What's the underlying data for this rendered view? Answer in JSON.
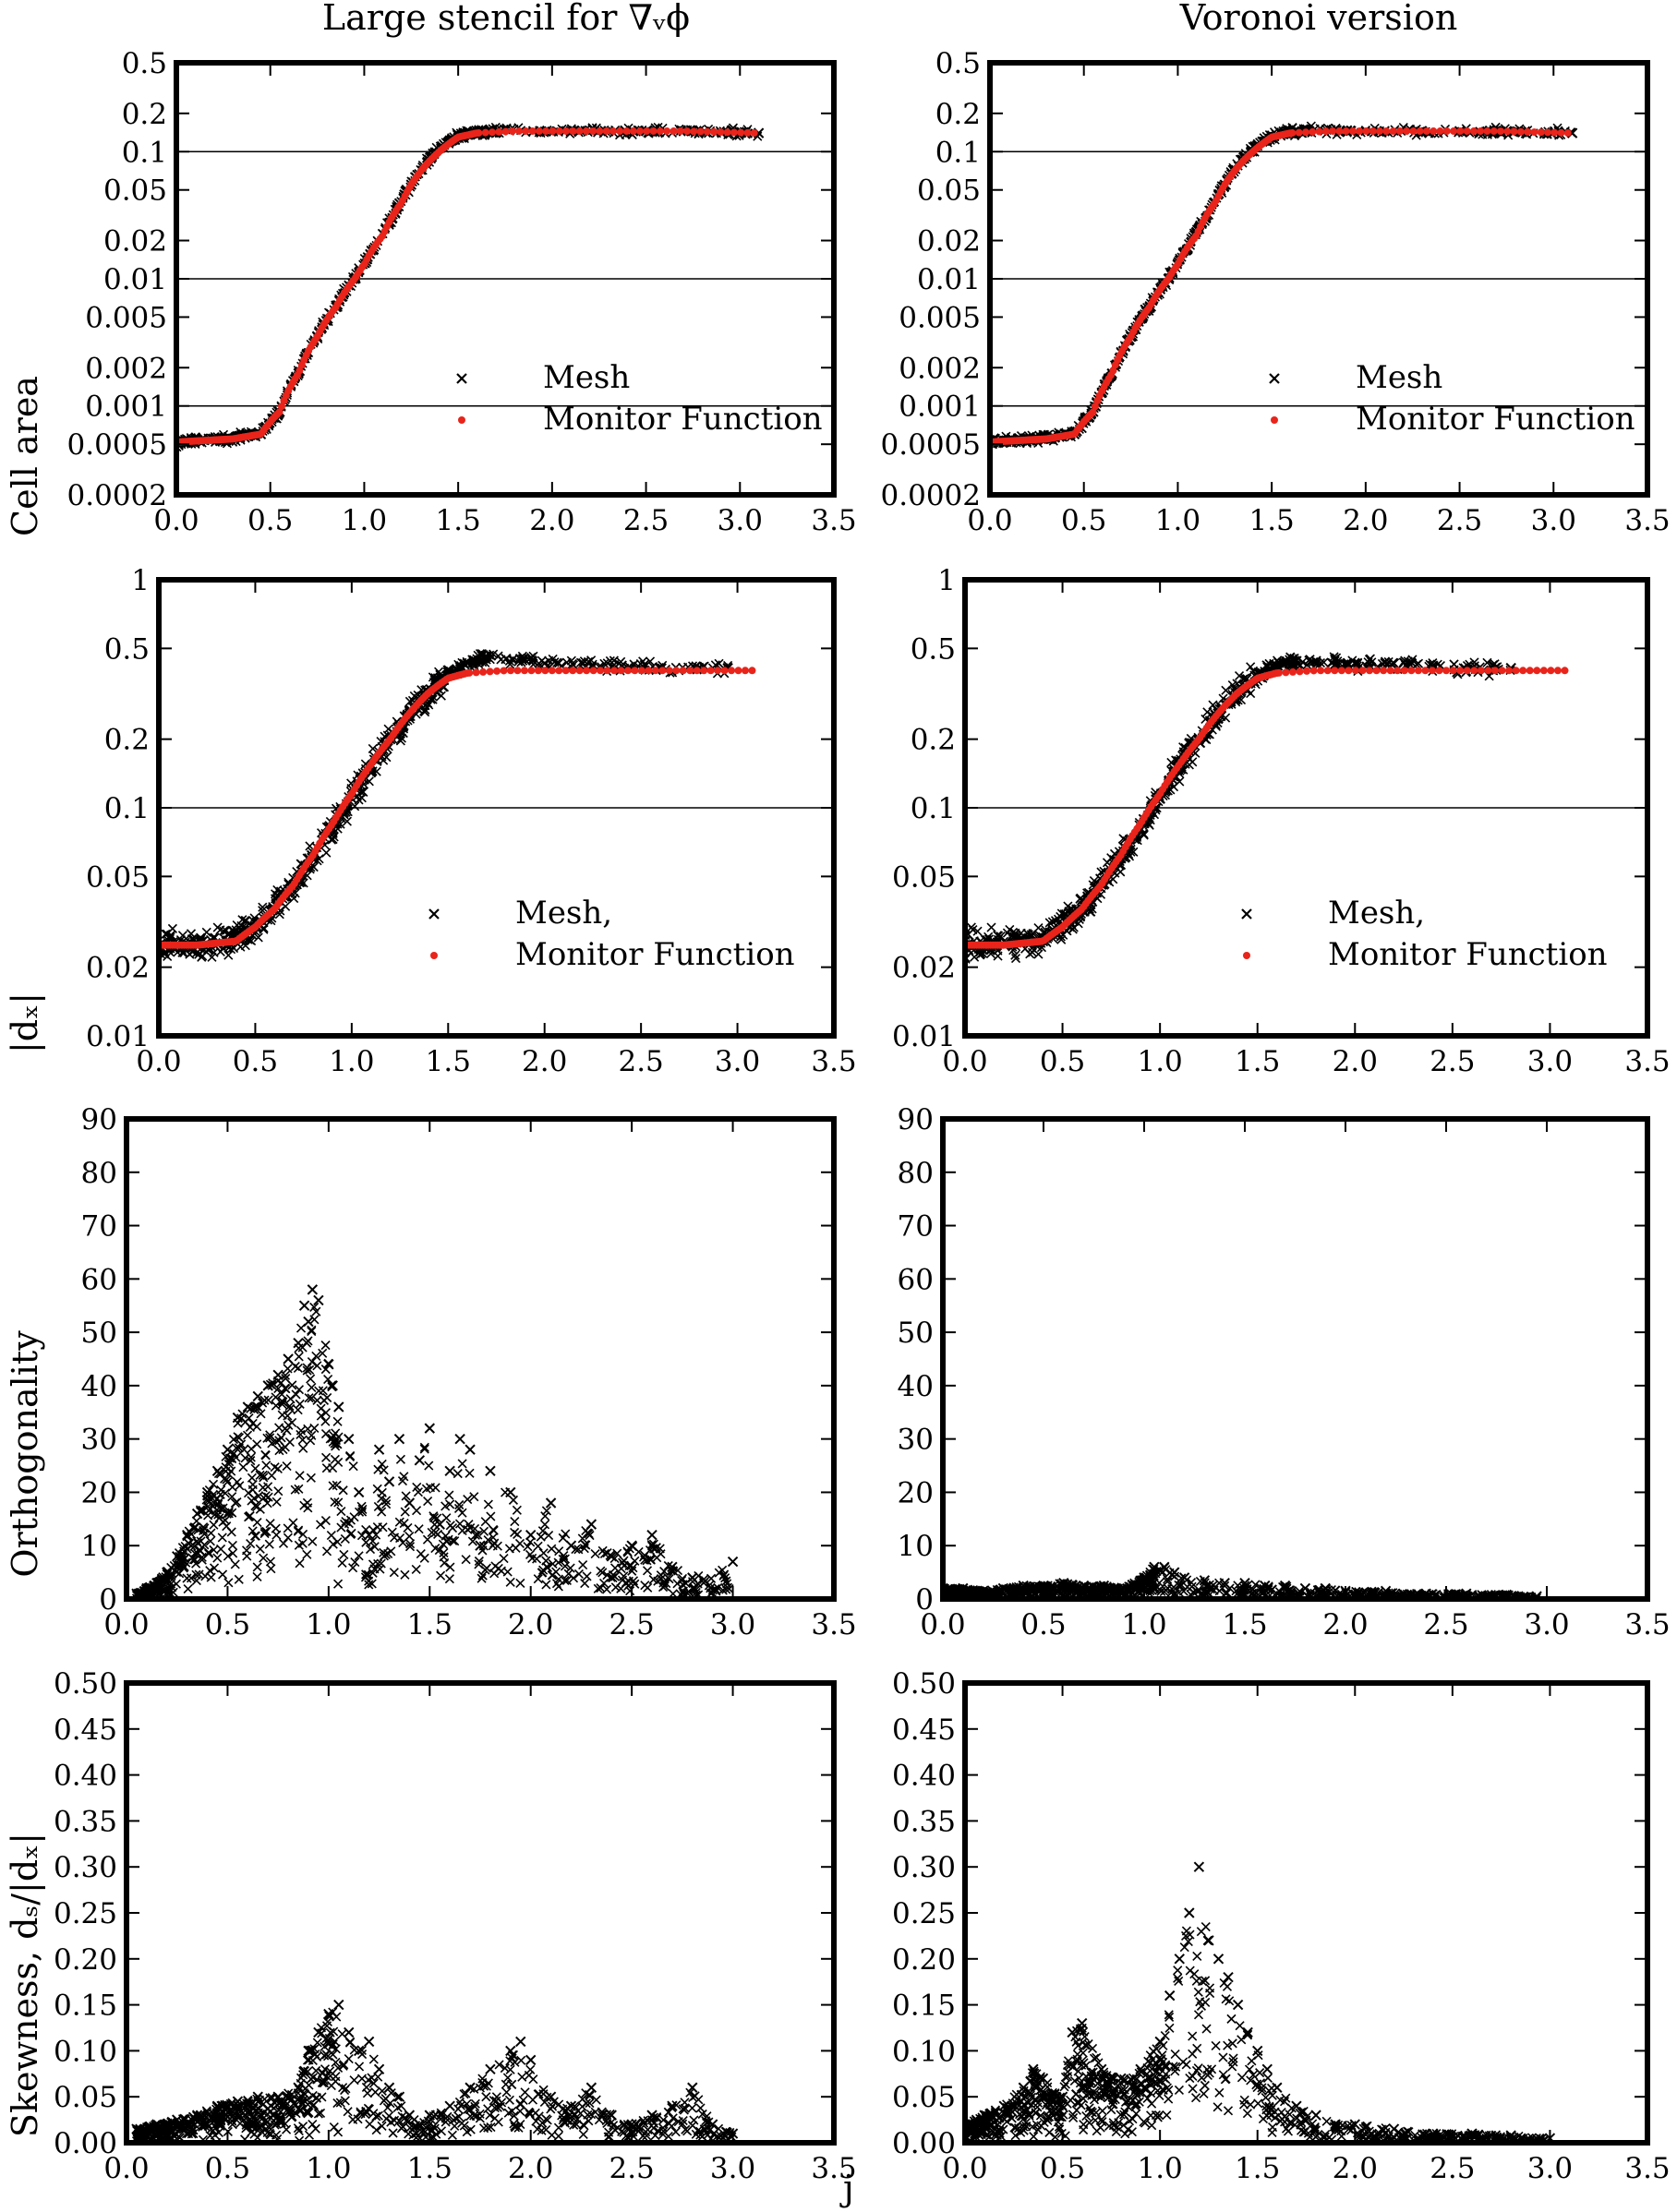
{
  "colors": {
    "mesh": "#000000",
    "monitor": "#e8241b",
    "axis": "#000000"
  },
  "figure": {
    "col_titles": [
      "Large stencil for ∇ᵥϕ",
      "Voronoi version"
    ],
    "row_ylabels": [
      "Cell area",
      "|dₓ|",
      "Orthogonality",
      "Skewness, dₛ/|dₓ|"
    ],
    "stray_label": "j"
  },
  "chart_data": [
    {
      "id": "cellarea-large",
      "type": "scatter",
      "yscale": "log",
      "xlim": [
        0,
        3.5
      ],
      "ylim": [
        0.0002,
        0.5
      ],
      "xticks": [
        "0.0",
        "0.5",
        "1.0",
        "1.5",
        "2.0",
        "2.5",
        "3.0",
        "3.5"
      ],
      "yticks": [
        "0.5",
        "0.2",
        "0.1",
        "0.05",
        "0.02",
        "0.01",
        "0.005",
        "0.002",
        "0.001",
        "0.0005",
        "0.0002"
      ],
      "hlines": [
        0.1,
        0.01,
        0.001
      ],
      "legend": [
        "Mesh",
        "Monitor Function"
      ],
      "legend_position": "bottom-right",
      "series": [
        {
          "name": "Mesh",
          "marker": "x",
          "x": [
            0.0,
            0.25,
            0.45,
            0.55,
            0.65,
            0.75,
            0.85,
            0.95,
            1.05,
            1.15,
            1.25,
            1.35,
            1.45,
            1.55,
            1.7,
            1.9,
            2.1,
            2.3,
            2.5,
            2.7,
            2.75,
            3.1
          ],
          "y": [
            0.00052,
            0.00055,
            0.0006,
            0.0009,
            0.0018,
            0.0035,
            0.006,
            0.01,
            0.017,
            0.03,
            0.055,
            0.09,
            0.12,
            0.14,
            0.145,
            0.145,
            0.145,
            0.145,
            0.145,
            0.145,
            0.145,
            0.14
          ]
        },
        {
          "name": "Monitor Function",
          "marker": "dot",
          "x": [
            0.0,
            0.3,
            0.45,
            0.55,
            0.65,
            0.75,
            0.85,
            0.95,
            1.0,
            1.1,
            1.2,
            1.3,
            1.4,
            1.5,
            1.6,
            1.8,
            2.0,
            2.2,
            2.4,
            2.6,
            2.7,
            3.1
          ],
          "y": [
            0.00052,
            0.00055,
            0.0006,
            0.0009,
            0.0018,
            0.0035,
            0.006,
            0.01,
            0.013,
            0.022,
            0.04,
            0.07,
            0.1,
            0.13,
            0.14,
            0.145,
            0.145,
            0.145,
            0.145,
            0.145,
            0.145,
            0.14
          ]
        }
      ]
    },
    {
      "id": "cellarea-voronoi",
      "type": "scatter",
      "yscale": "log",
      "xlim": [
        0,
        3.5
      ],
      "ylim": [
        0.0002,
        0.5
      ],
      "xticks": [
        "0.0",
        "0.5",
        "1.0",
        "1.5",
        "2.0",
        "2.5",
        "3.0",
        "3.5"
      ],
      "yticks": [
        "0.5",
        "0.2",
        "0.1",
        "0.05",
        "0.02",
        "0.01",
        "0.005",
        "0.002",
        "0.001",
        "0.0005",
        "0.0002"
      ],
      "hlines": [
        0.1,
        0.01,
        0.001
      ],
      "legend": [
        "Mesh",
        "Monitor Function"
      ],
      "legend_position": "bottom-right",
      "series": [
        {
          "name": "Mesh",
          "marker": "x",
          "x": [
            0.0,
            0.25,
            0.45,
            0.55,
            0.65,
            0.75,
            0.85,
            0.95,
            1.05,
            1.15,
            1.25,
            1.35,
            1.45,
            1.55,
            1.7,
            1.9,
            2.1,
            2.3,
            2.5,
            2.7,
            2.75,
            3.1
          ],
          "y": [
            0.00052,
            0.00055,
            0.0006,
            0.0009,
            0.0018,
            0.0035,
            0.006,
            0.01,
            0.017,
            0.03,
            0.055,
            0.09,
            0.12,
            0.14,
            0.145,
            0.145,
            0.145,
            0.145,
            0.145,
            0.145,
            0.145,
            0.14
          ]
        },
        {
          "name": "Monitor Function",
          "marker": "dot",
          "x": [
            0.0,
            0.3,
            0.45,
            0.55,
            0.65,
            0.75,
            0.85,
            0.95,
            1.0,
            1.1,
            1.2,
            1.3,
            1.4,
            1.5,
            1.6,
            1.8,
            2.0,
            2.2,
            2.4,
            2.6,
            2.7,
            3.1
          ],
          "y": [
            0.00052,
            0.00055,
            0.0006,
            0.0009,
            0.0018,
            0.0035,
            0.006,
            0.01,
            0.013,
            0.022,
            0.04,
            0.07,
            0.1,
            0.13,
            0.14,
            0.145,
            0.145,
            0.145,
            0.145,
            0.145,
            0.145,
            0.14
          ]
        }
      ]
    },
    {
      "id": "dx-large",
      "type": "scatter",
      "yscale": "log",
      "xlim": [
        0,
        3.5
      ],
      "ylim": [
        0.01,
        1
      ],
      "xticks": [
        "0.0",
        "0.5",
        "1.0",
        "1.5",
        "2.0",
        "2.5",
        "3.0",
        "3.5"
      ],
      "yticks": [
        "1",
        "0.5",
        "0.2",
        "0.1",
        "0.05",
        "0.02",
        "0.01"
      ],
      "hlines": [
        0.1
      ],
      "legend": [
        "Mesh,",
        "Monitor Function"
      ],
      "legend_position": "bottom-right",
      "series": [
        {
          "name": "Mesh,",
          "marker": "x",
          "x": [
            0.0,
            0.2,
            0.4,
            0.5,
            0.6,
            0.7,
            0.8,
            0.9,
            1.0,
            1.1,
            1.2,
            1.3,
            1.4,
            1.5,
            1.6,
            1.7,
            1.8,
            2.0,
            2.2,
            2.4,
            2.6,
            2.8,
            2.95
          ],
          "y": [
            0.025,
            0.025,
            0.027,
            0.03,
            0.036,
            0.046,
            0.06,
            0.08,
            0.11,
            0.15,
            0.2,
            0.26,
            0.32,
            0.38,
            0.43,
            0.46,
            0.45,
            0.43,
            0.43,
            0.42,
            0.41,
            0.41,
            0.41
          ]
        },
        {
          "name": "Monitor Function",
          "marker": "dot",
          "x": [
            0.0,
            0.2,
            0.4,
            0.5,
            0.6,
            0.7,
            0.8,
            0.9,
            1.0,
            1.1,
            1.2,
            1.3,
            1.4,
            1.5,
            1.6,
            1.8,
            2.0,
            2.2,
            2.4,
            2.6,
            2.8,
            3.1
          ],
          "y": [
            0.025,
            0.025,
            0.026,
            0.03,
            0.036,
            0.046,
            0.062,
            0.085,
            0.115,
            0.155,
            0.2,
            0.26,
            0.32,
            0.37,
            0.39,
            0.4,
            0.4,
            0.4,
            0.4,
            0.4,
            0.4,
            0.4
          ]
        }
      ]
    },
    {
      "id": "dx-voronoi",
      "type": "scatter",
      "yscale": "log",
      "xlim": [
        0,
        3.5
      ],
      "ylim": [
        0.01,
        1
      ],
      "xticks": [
        "0.0",
        "0.5",
        "1.0",
        "1.5",
        "2.0",
        "2.5",
        "3.0",
        "3.5"
      ],
      "yticks": [
        "1",
        "0.5",
        "0.2",
        "0.1",
        "0.05",
        "0.02",
        "0.01"
      ],
      "hlines": [
        0.1
      ],
      "legend": [
        "Mesh,",
        "Monitor Function"
      ],
      "legend_position": "bottom-right",
      "series": [
        {
          "name": "Mesh,",
          "marker": "x",
          "x": [
            0.0,
            0.2,
            0.4,
            0.5,
            0.6,
            0.7,
            0.8,
            0.9,
            1.0,
            1.1,
            1.2,
            1.3,
            1.4,
            1.5,
            1.6,
            1.7,
            1.8,
            2.0,
            2.2,
            2.4,
            2.6,
            2.8
          ],
          "y": [
            0.025,
            0.025,
            0.027,
            0.03,
            0.036,
            0.046,
            0.06,
            0.08,
            0.11,
            0.15,
            0.2,
            0.26,
            0.32,
            0.38,
            0.42,
            0.44,
            0.44,
            0.43,
            0.43,
            0.42,
            0.41,
            0.41
          ]
        },
        {
          "name": "Monitor Function",
          "marker": "dot",
          "x": [
            0.0,
            0.2,
            0.4,
            0.5,
            0.6,
            0.7,
            0.8,
            0.9,
            1.0,
            1.1,
            1.2,
            1.3,
            1.4,
            1.5,
            1.6,
            1.8,
            2.0,
            2.2,
            2.4,
            2.6,
            2.8,
            3.1
          ],
          "y": [
            0.025,
            0.025,
            0.026,
            0.03,
            0.036,
            0.046,
            0.062,
            0.085,
            0.115,
            0.155,
            0.2,
            0.26,
            0.32,
            0.37,
            0.39,
            0.4,
            0.4,
            0.4,
            0.4,
            0.4,
            0.4,
            0.4
          ]
        }
      ]
    },
    {
      "id": "orth-large",
      "type": "scatter",
      "yscale": "linear",
      "xlim": [
        0,
        3.5
      ],
      "ylim": [
        0,
        90
      ],
      "xticks": [
        "0.0",
        "0.5",
        "1.0",
        "1.5",
        "2.0",
        "2.5",
        "3.0",
        "3.5"
      ],
      "yticks": [
        "90",
        "80",
        "70",
        "60",
        "50",
        "40",
        "30",
        "20",
        "10",
        "0"
      ],
      "series": [
        {
          "name": "Mesh",
          "marker": "x",
          "x": [
            0.05,
            0.1,
            0.15,
            0.2,
            0.25,
            0.3,
            0.35,
            0.4,
            0.45,
            0.5,
            0.55,
            0.6,
            0.65,
            0.7,
            0.75,
            0.8,
            0.85,
            0.88,
            0.9,
            0.92,
            0.95,
            1.0,
            1.02,
            1.05,
            1.1,
            1.15,
            1.2,
            1.25,
            1.3,
            1.35,
            1.4,
            1.45,
            1.5,
            1.55,
            1.6,
            1.65,
            1.7,
            1.75,
            1.8,
            1.9,
            2.0,
            2.1,
            2.2,
            2.3,
            2.4,
            2.5,
            2.6,
            2.7,
            2.8,
            3.0
          ],
          "y": [
            1,
            2,
            3,
            5,
            8,
            12,
            16,
            20,
            24,
            28,
            34,
            36,
            38,
            40,
            42,
            45,
            48,
            55,
            52,
            58,
            56,
            44,
            40,
            36,
            30,
            20,
            12,
            28,
            22,
            30,
            18,
            26,
            32,
            14,
            24,
            30,
            28,
            10,
            24,
            20,
            12,
            18,
            10,
            14,
            8,
            10,
            12,
            6,
            4,
            7
          ]
        }
      ]
    },
    {
      "id": "orth-voronoi",
      "type": "scatter",
      "yscale": "linear",
      "xlim": [
        0,
        3.5
      ],
      "ylim": [
        0,
        90
      ],
      "xticks": [
        "0.0",
        "0.5",
        "1.0",
        "1.5",
        "2.0",
        "2.5",
        "3.0",
        "3.5"
      ],
      "yticks": [
        "90",
        "80",
        "70",
        "60",
        "50",
        "40",
        "30",
        "20",
        "10",
        "0"
      ],
      "series": [
        {
          "name": "Mesh",
          "marker": "x",
          "x": [
            0.0,
            0.1,
            0.2,
            0.3,
            0.4,
            0.5,
            0.6,
            0.7,
            0.8,
            0.9,
            1.0,
            1.05,
            1.1,
            1.15,
            1.2,
            1.3,
            1.4,
            1.5,
            1.6,
            1.7,
            1.8,
            1.9,
            2.0,
            2.2,
            2.4,
            2.6,
            2.8,
            2.95
          ],
          "y": [
            2,
            2,
            1.5,
            2,
            2.5,
            2.5,
            3,
            2.5,
            2.5,
            2,
            4,
            6,
            6,
            5,
            4,
            3.5,
            3,
            3,
            2.5,
            2.5,
            2,
            2,
            1.5,
            1.5,
            1,
            1,
            0.8,
            0.5
          ]
        }
      ]
    },
    {
      "id": "skew-large",
      "type": "scatter",
      "yscale": "linear",
      "xlim": [
        0,
        3.5
      ],
      "ylim": [
        0,
        0.5
      ],
      "xticks": [
        "0.0",
        "0.5",
        "1.0",
        "1.5",
        "2.0",
        "2.5",
        "3.0",
        "3.5"
      ],
      "yticks": [
        "0.50",
        "0.45",
        "0.40",
        "0.35",
        "0.30",
        "0.25",
        "0.20",
        "0.15",
        "0.10",
        "0.05",
        "0.00"
      ],
      "series": [
        {
          "name": "Mesh",
          "marker": "x",
          "x": [
            0.05,
            0.15,
            0.25,
            0.35,
            0.45,
            0.55,
            0.65,
            0.75,
            0.85,
            0.9,
            0.95,
            1.0,
            1.05,
            1.1,
            1.15,
            1.2,
            1.25,
            1.3,
            1.35,
            1.4,
            1.45,
            1.5,
            1.6,
            1.7,
            1.8,
            1.9,
            1.95,
            2.0,
            2.1,
            2.2,
            2.3,
            2.4,
            2.5,
            2.6,
            2.7,
            2.8,
            2.9,
            3.0
          ],
          "y": [
            0.015,
            0.02,
            0.025,
            0.03,
            0.04,
            0.045,
            0.05,
            0.05,
            0.06,
            0.1,
            0.12,
            0.14,
            0.15,
            0.12,
            0.1,
            0.11,
            0.08,
            0.06,
            0.05,
            0.03,
            0.02,
            0.03,
            0.04,
            0.06,
            0.08,
            0.1,
            0.11,
            0.09,
            0.05,
            0.04,
            0.06,
            0.03,
            0.02,
            0.03,
            0.04,
            0.06,
            0.02,
            0.01
          ]
        }
      ]
    },
    {
      "id": "skew-voronoi",
      "type": "scatter",
      "yscale": "linear",
      "xlim": [
        0,
        3.5
      ],
      "ylim": [
        0,
        0.5
      ],
      "xticks": [
        "0.0",
        "0.5",
        "1.0",
        "1.5",
        "2.0",
        "2.5",
        "3.0",
        "3.5"
      ],
      "yticks": [
        "0.50",
        "0.45",
        "0.40",
        "0.35",
        "0.30",
        "0.25",
        "0.20",
        "0.15",
        "0.10",
        "0.05",
        "0.00"
      ],
      "series": [
        {
          "name": "Mesh",
          "marker": "x",
          "x": [
            0.0,
            0.1,
            0.2,
            0.3,
            0.35,
            0.4,
            0.5,
            0.55,
            0.6,
            0.7,
            0.8,
            0.9,
            1.0,
            1.05,
            1.1,
            1.15,
            1.2,
            1.25,
            1.3,
            1.35,
            1.4,
            1.45,
            1.5,
            1.55,
            1.6,
            1.7,
            1.8,
            1.9,
            2.0,
            2.2,
            2.4,
            2.6,
            2.8,
            3.0
          ],
          "y": [
            0.02,
            0.03,
            0.04,
            0.06,
            0.08,
            0.07,
            0.05,
            0.12,
            0.13,
            0.08,
            0.07,
            0.08,
            0.11,
            0.16,
            0.2,
            0.25,
            0.3,
            0.22,
            0.2,
            0.18,
            0.15,
            0.12,
            0.1,
            0.08,
            0.06,
            0.04,
            0.03,
            0.02,
            0.02,
            0.015,
            0.01,
            0.01,
            0.008,
            0.005
          ]
        }
      ]
    }
  ]
}
